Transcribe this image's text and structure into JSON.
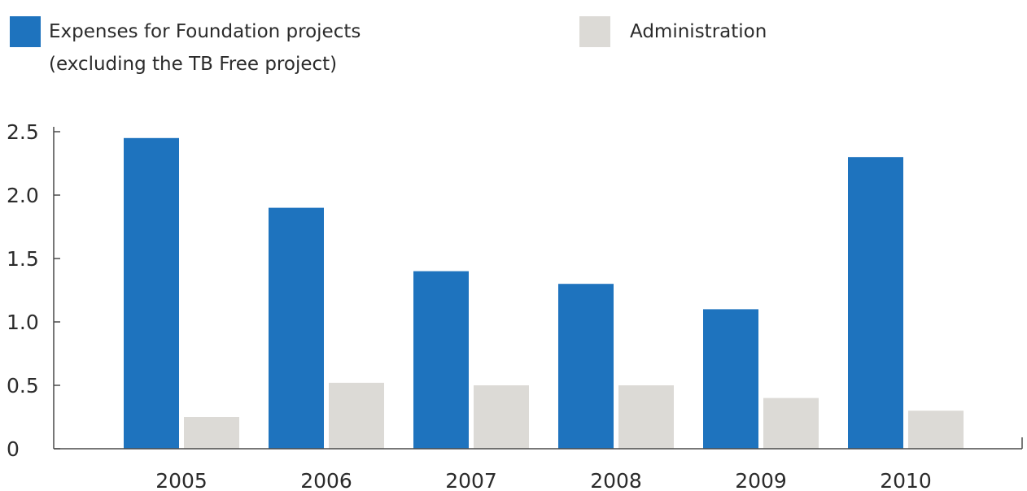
{
  "chart_data": {
    "type": "bar",
    "categories": [
      "2005",
      "2006",
      "2007",
      "2008",
      "2009",
      "2010"
    ],
    "series": [
      {
        "name": "Expenses for Foundation projects (excluding the TB Free project)",
        "name_lines": [
          "Expenses for Foundation projects",
          "(excluding the TB Free project)"
        ],
        "color": "#1e73be",
        "values": [
          2.45,
          1.9,
          1.4,
          1.3,
          1.1,
          2.3
        ]
      },
      {
        "name": "Administration",
        "name_lines": [
          "Administration"
        ],
        "color": "#dcdad6",
        "values": [
          0.25,
          0.52,
          0.5,
          0.5,
          0.4,
          0.3
        ]
      }
    ],
    "yticks": [
      "0",
      "0.5",
      "1.0",
      "1.5",
      "2.0",
      "2.5"
    ],
    "ylim": [
      0,
      2.5
    ],
    "grid": false,
    "legend_position": "top",
    "title": "",
    "xlabel": "",
    "ylabel": ""
  }
}
